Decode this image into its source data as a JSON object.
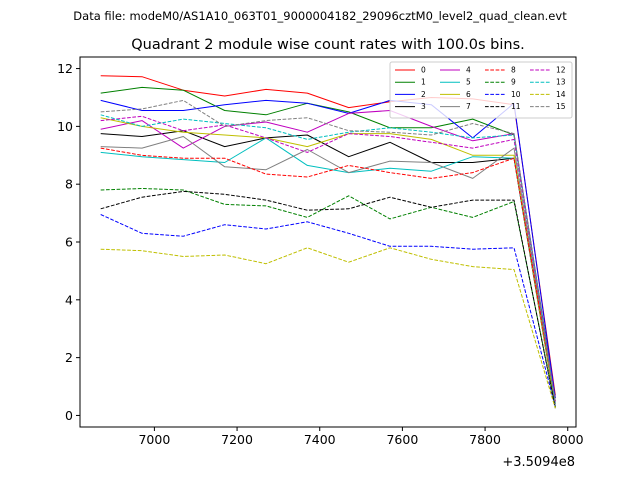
{
  "chart_data": {
    "type": "line",
    "suptitle": "Data file: modeM0/AS1A10_063T01_9000004182_29096cztM0_level2_quad_clean.evt",
    "title": "Quadrant 2 module wise count rates with 100.0s bins.",
    "xlabel": "",
    "ylabel": "",
    "x_offset_label": "+3.5094e8",
    "x": [
      6870,
      6970,
      7070,
      7170,
      7270,
      7370,
      7470,
      7570,
      7670,
      7770,
      7870,
      7970
    ],
    "xlim": [
      6820,
      8020
    ],
    "ylim": [
      -0.4,
      12.4
    ],
    "xticks": [
      7000,
      7200,
      7400,
      7600,
      7800,
      8000
    ],
    "yticks": [
      0,
      2,
      4,
      6,
      8,
      10,
      12
    ],
    "legend_position": "upper-right",
    "legend_columns": 4,
    "series": [
      {
        "name": "0",
        "color": "#ff0000",
        "dash": "solid",
        "values": [
          11.75,
          11.72,
          11.25,
          11.05,
          11.28,
          11.15,
          10.65,
          10.85,
          11.0,
          10.95,
          10.75,
          0.7
        ]
      },
      {
        "name": "1",
        "color": "#008000",
        "dash": "solid",
        "values": [
          11.15,
          11.35,
          11.25,
          10.55,
          10.4,
          10.8,
          10.5,
          9.95,
          9.95,
          10.25,
          9.7,
          0.6
        ]
      },
      {
        "name": "2",
        "color": "#0000ff",
        "dash": "solid",
        "values": [
          10.9,
          10.55,
          10.55,
          10.75,
          10.9,
          10.8,
          10.45,
          10.9,
          10.75,
          9.6,
          10.8,
          0.6
        ]
      },
      {
        "name": "3",
        "color": "#000000",
        "dash": "solid",
        "values": [
          9.75,
          9.65,
          9.85,
          9.3,
          9.6,
          9.7,
          8.95,
          9.45,
          8.75,
          8.75,
          8.9,
          0.3
        ]
      },
      {
        "name": "4",
        "color": "#bf00bf",
        "dash": "solid",
        "values": [
          9.9,
          10.2,
          9.25,
          10.0,
          10.15,
          9.8,
          10.45,
          10.55,
          10.0,
          9.5,
          9.75,
          0.5
        ]
      },
      {
        "name": "5",
        "color": "#00bfbf",
        "dash": "solid",
        "values": [
          9.1,
          8.95,
          8.85,
          8.75,
          9.6,
          8.65,
          8.4,
          8.55,
          8.45,
          8.95,
          8.9,
          0.4
        ]
      },
      {
        "name": "6",
        "color": "#bfbf00",
        "dash": "solid",
        "values": [
          10.3,
          10.0,
          9.8,
          9.7,
          9.6,
          9.3,
          9.75,
          9.75,
          9.55,
          9.0,
          9.0,
          0.3
        ]
      },
      {
        "name": "7",
        "color": "#808080",
        "dash": "solid",
        "values": [
          9.3,
          9.25,
          9.65,
          8.6,
          8.5,
          9.2,
          8.4,
          8.8,
          8.75,
          8.2,
          9.25,
          0.4
        ]
      },
      {
        "name": "8",
        "color": "#ff0000",
        "dash": "dashed",
        "values": [
          9.25,
          9.0,
          8.9,
          8.9,
          8.35,
          8.25,
          8.65,
          8.4,
          8.2,
          8.4,
          8.9,
          0.5
        ]
      },
      {
        "name": "9",
        "color": "#008000",
        "dash": "dashed",
        "values": [
          7.8,
          7.85,
          7.8,
          7.3,
          7.25,
          6.85,
          7.6,
          6.8,
          7.2,
          6.85,
          7.4,
          0.3
        ]
      },
      {
        "name": "10",
        "color": "#0000ff",
        "dash": "dashed",
        "values": [
          6.95,
          6.3,
          6.2,
          6.6,
          6.45,
          6.7,
          6.3,
          5.85,
          5.85,
          5.75,
          5.8,
          0.3
        ]
      },
      {
        "name": "11",
        "color": "#000000",
        "dash": "dashed",
        "values": [
          7.15,
          7.55,
          7.75,
          7.65,
          7.45,
          7.1,
          7.15,
          7.55,
          7.2,
          7.45,
          7.45,
          0.25
        ]
      },
      {
        "name": "12",
        "color": "#bf00bf",
        "dash": "dashed",
        "values": [
          10.2,
          10.35,
          9.85,
          10.05,
          9.6,
          9.1,
          9.75,
          9.65,
          9.45,
          9.25,
          9.55,
          0.45
        ]
      },
      {
        "name": "13",
        "color": "#00bfbf",
        "dash": "dashed",
        "values": [
          10.4,
          10.0,
          10.25,
          10.1,
          9.95,
          9.55,
          9.8,
          9.95,
          9.8,
          9.6,
          9.7,
          0.45
        ]
      },
      {
        "name": "14",
        "color": "#bfbf00",
        "dash": "dashed",
        "values": [
          5.75,
          5.7,
          5.5,
          5.55,
          5.25,
          5.8,
          5.3,
          5.8,
          5.4,
          5.15,
          5.05,
          0.25
        ]
      },
      {
        "name": "15",
        "color": "#808080",
        "dash": "dashed",
        "values": [
          10.5,
          10.6,
          10.9,
          10.0,
          10.2,
          10.3,
          9.85,
          9.8,
          9.7,
          10.1,
          9.75,
          0.4
        ]
      }
    ]
  }
}
